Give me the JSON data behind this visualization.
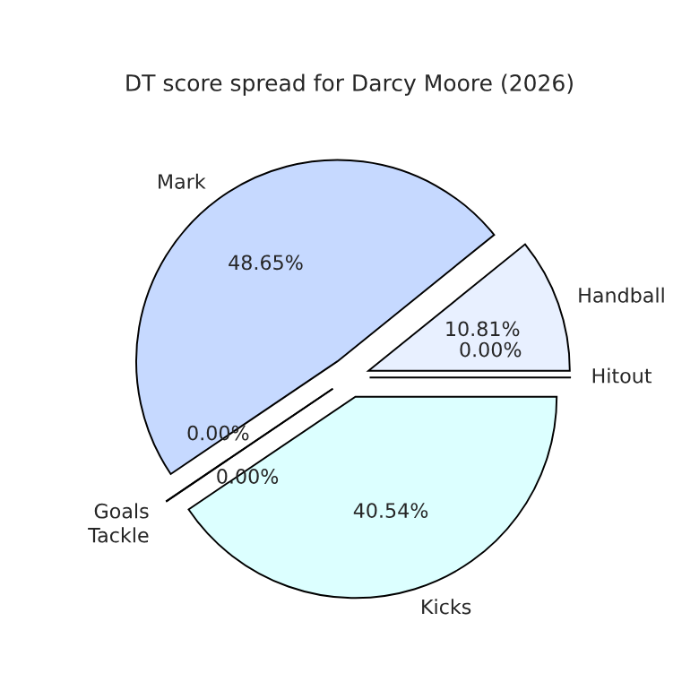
{
  "chart_data": {
    "type": "pie",
    "title": "DT score spread for Darcy Moore (2026)",
    "categories": [
      "Handball",
      "Mark",
      "Goals",
      "Tackle",
      "Kicks",
      "Hitout"
    ],
    "values": [
      10.81,
      48.65,
      0.0,
      0.0,
      40.54,
      0.0
    ],
    "value_labels": [
      "10.81%",
      "48.65%",
      "0.00%",
      "0.00%",
      "40.54%",
      "0.00%"
    ],
    "colors": [
      "#e8f0ff",
      "#c6d9ff",
      "#c6d9ff",
      "#dcffff",
      "#dcffff",
      "#e8f0ff"
    ]
  }
}
